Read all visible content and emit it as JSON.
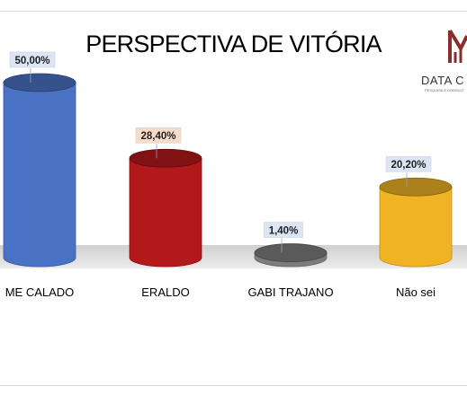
{
  "chart_data": {
    "type": "bar",
    "title": "PERSPECTIVA DE VITÓRIA",
    "categories": [
      "ME CALADO",
      "ERALDO",
      "GABI TRAJANO",
      "Não sei"
    ],
    "values": [
      50.0,
      28.4,
      1.4,
      20.2
    ],
    "value_labels": [
      "50,00%",
      "28,40%",
      "1,40%",
      "20,20%"
    ],
    "ylim": [
      0,
      50
    ],
    "grid": false,
    "legend": "none",
    "colors": [
      "#4a72c4",
      "#b3181b",
      "#7d7d7d",
      "#f0b323"
    ],
    "label_backgrounds": [
      "#dbe5f4",
      "#f8dcc8",
      "#dbe5f4",
      "#dbe5f4"
    ]
  },
  "logo": {
    "text": "DATA C",
    "subtext": "PESQUISA E CONSULT",
    "color": "#8b2d2d"
  }
}
